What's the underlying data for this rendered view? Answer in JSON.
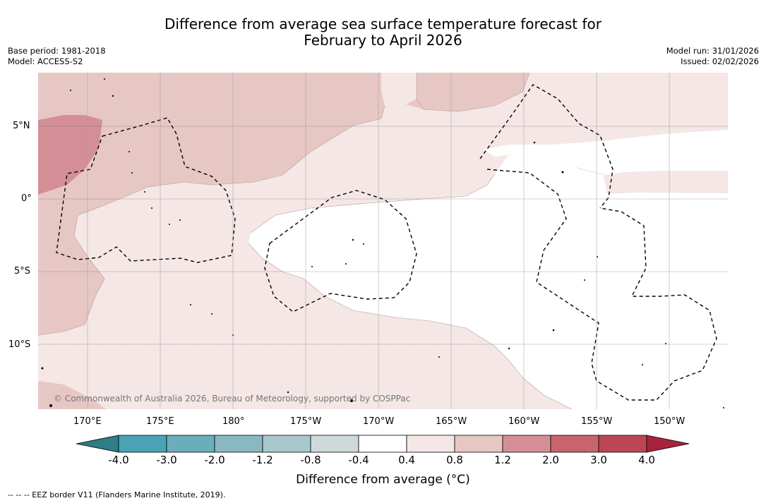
{
  "title": {
    "line1": "Difference from average sea surface temperature forecast for",
    "line2": "February to April 2026"
  },
  "meta": {
    "base_period": "Base period: 1981-2018",
    "model": "Model: ACCESS-S2",
    "model_run": "Model run: 31/01/2026",
    "issued": "Issued: 02/02/2026"
  },
  "map": {
    "lat_labels": [
      "5°N",
      "0°",
      "5°S",
      "10°S"
    ],
    "lon_labels": [
      "170°E",
      "175°E",
      "180°",
      "175°W",
      "170°W",
      "165°W",
      "160°W",
      "155°W",
      "150°W"
    ],
    "copyright": "© Commonwealth of Australia 2026, Bureau of Meteorology, supported by COSPPac",
    "colors": {
      "band_0_4_0_8": "#f4e7e6",
      "band_0_8_1_2": "#e7c7c4",
      "band_1_2_2_0": "#d48f96",
      "ocean_neutral": "#ffffff"
    }
  },
  "colorbar": {
    "ticks": [
      "-4.0",
      "-3.0",
      "-2.0",
      "-1.2",
      "-0.8",
      "-0.4",
      "0.4",
      "0.8",
      "1.2",
      "2.0",
      "3.0",
      "4.0"
    ],
    "colors": [
      "#2f7d86",
      "#4aa3b5",
      "#6aaebb",
      "#8ab8c2",
      "#a9c8cc",
      "#cdd9da",
      "#ffffff",
      "#f4e7e6",
      "#e7c7c4",
      "#d48f96",
      "#c8646e",
      "#bd4654",
      "#a8233b"
    ],
    "title": "Difference from average (°C)"
  },
  "footer": "--  --  -- EEZ border V11 (Flanders Marine Institute, 2019)."
}
